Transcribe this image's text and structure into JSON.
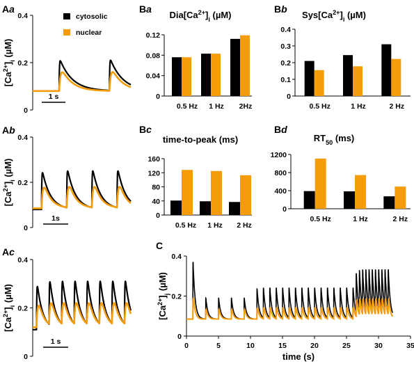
{
  "colors": {
    "cytosolic": "#000000",
    "nuclear": "#f59c0b"
  },
  "legend": {
    "cytosolic": "cytosolic",
    "nuclear": "nuclear"
  },
  "chart_data": [
    {
      "id": "Aa",
      "panel_label": "Aa",
      "type": "line",
      "ylabel": "[Ca2+]i (µM)",
      "ylim": [
        0,
        0.4
      ],
      "yticks": [
        "0",
        "0.2",
        "0.4"
      ],
      "scalebar_label": "1 s",
      "frequency_hz": 0.5,
      "series": [
        {
          "name": "cytosolic",
          "baseline": 0.08,
          "peak": 0.21
        },
        {
          "name": "nuclear",
          "baseline": 0.08,
          "peak": 0.16
        }
      ]
    },
    {
      "id": "Ab",
      "panel_label": "Ab",
      "type": "line",
      "ylabel": "[Ca2+]i (µM)",
      "ylim": [
        0,
        0.4
      ],
      "yticks": [
        "0",
        "0.2",
        "0.4"
      ],
      "scalebar_label": "1s",
      "frequency_hz": 1,
      "series": [
        {
          "name": "cytosolic",
          "baseline": 0.08,
          "peak": 0.25
        },
        {
          "name": "nuclear",
          "baseline": 0.085,
          "peak": 0.18
        }
      ]
    },
    {
      "id": "Ac",
      "panel_label": "Ac",
      "type": "line",
      "ylabel": "[Ca2+]i (µM)",
      "ylim": [
        0,
        0.4
      ],
      "yticks": [
        "0",
        "0.2",
        "0.4"
      ],
      "scalebar_label": "1 s",
      "frequency_hz": 2,
      "series": [
        {
          "name": "cytosolic",
          "baseline": 0.11,
          "peak": 0.31
        },
        {
          "name": "nuclear",
          "baseline": 0.12,
          "peak": 0.22
        }
      ]
    },
    {
      "id": "Ba",
      "panel_label": "Ba",
      "type": "bar",
      "title": "Dia[Ca2+]i (µM)",
      "categories": [
        "0.5 Hz",
        "1 Hz",
        "2Hz"
      ],
      "ylim": [
        0,
        0.12
      ],
      "yticks": [
        "0",
        "0.04",
        "0.08",
        "0.12"
      ],
      "series": [
        {
          "name": "cytosolic",
          "values": [
            0.076,
            0.083,
            0.112
          ]
        },
        {
          "name": "nuclear",
          "values": [
            0.076,
            0.083,
            0.119
          ]
        }
      ]
    },
    {
      "id": "Bb",
      "panel_label": "Bb",
      "type": "bar",
      "title": "Sys[Ca2+]i (µM)",
      "categories": [
        "0.5 Hz",
        "1 Hz",
        "2 Hz"
      ],
      "ylim": [
        0,
        0.4
      ],
      "yticks": [
        "0",
        "0.1",
        "0.2",
        "0.3",
        "0.4"
      ],
      "series": [
        {
          "name": "cytosolic",
          "values": [
            0.21,
            0.245,
            0.31
          ]
        },
        {
          "name": "nuclear",
          "values": [
            0.155,
            0.178,
            0.222
          ]
        }
      ]
    },
    {
      "id": "Bc",
      "panel_label": "Bc",
      "type": "bar",
      "title": "time-to-peak (ms)",
      "categories": [
        "0.5 Hz",
        "1 Hz",
        "2 Hz"
      ],
      "ylim": [
        0,
        160
      ],
      "yticks": [
        "0",
        "40",
        "80",
        "120",
        "160"
      ],
      "series": [
        {
          "name": "cytosolic",
          "values": [
            41,
            39,
            37
          ]
        },
        {
          "name": "nuclear",
          "values": [
            128,
            125,
            113
          ]
        }
      ]
    },
    {
      "id": "Bd",
      "panel_label": "Bd",
      "type": "bar",
      "title": "RT50 (ms)",
      "categories": [
        "0.5 Hz",
        "1 Hz",
        "2 Hz"
      ],
      "ylim": [
        0,
        1200
      ],
      "yticks": [
        "0",
        "400",
        "800",
        "1200"
      ],
      "series": [
        {
          "name": "cytosolic",
          "values": [
            390,
            385,
            275
          ]
        },
        {
          "name": "nuclear",
          "values": [
            1110,
            745,
            490
          ]
        }
      ]
    },
    {
      "id": "C",
      "panel_label": "C",
      "type": "line",
      "ylabel": "[Ca2+]j (µM)",
      "xlabel": "time (s)",
      "xlim": [
        0,
        35
      ],
      "xticks": [
        "0",
        "5",
        "10",
        "15",
        "20",
        "25",
        "30",
        "35"
      ],
      "ylim": [
        0,
        0.4
      ],
      "yticks": [
        "0",
        "0.2",
        "0.4"
      ],
      "segments": [
        {
          "t_start": 1,
          "t_end": 10,
          "frequency_hz": 0.5,
          "cyto_peak": 0.2,
          "nuc_peak": 0.16
        },
        {
          "t_start": 11,
          "t_end": 26.5,
          "frequency_hz": 1,
          "cyto_peak": 0.25,
          "nuc_peak": 0.17
        },
        {
          "t_start": 26.5,
          "t_end": 32,
          "frequency_hz": 2,
          "cyto_peak": 0.3,
          "nuc_peak": 0.21
        }
      ],
      "first_peak": {
        "cytosolic": 0.4,
        "nuclear": 0.245
      },
      "baseline": {
        "cytosolic": 0.085,
        "nuclear": 0.085
      }
    }
  ]
}
